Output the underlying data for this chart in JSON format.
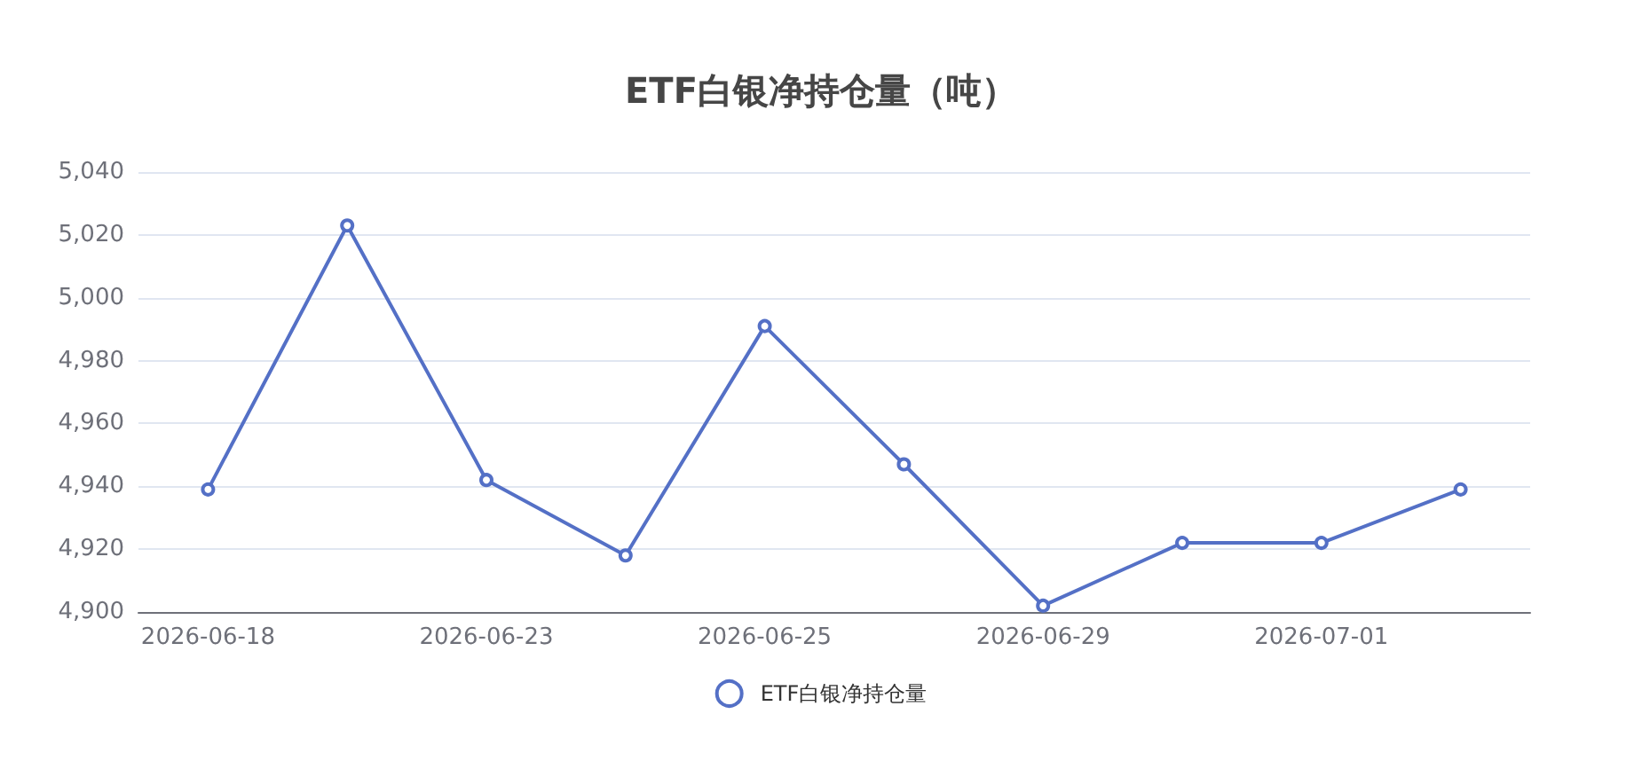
{
  "chart_data": {
    "type": "line",
    "title": "ETF白银净持仓量（吨）",
    "categories": [
      "2026-06-18",
      null,
      "2026-06-23",
      null,
      "2026-06-25",
      null,
      "2026-06-29",
      null,
      "2026-07-01",
      null
    ],
    "series": [
      {
        "name": "ETF白银净持仓量",
        "color": "#5470c6",
        "values": [
          4939,
          5023,
          4942,
          4918,
          4991,
          4947,
          4902,
          4922,
          4922,
          4939
        ]
      }
    ],
    "ylim": [
      4900,
      5040
    ],
    "yticks": [
      {
        "value": 4900,
        "label": "4,900"
      },
      {
        "value": 4920,
        "label": "4,920"
      },
      {
        "value": 4940,
        "label": "4,940"
      },
      {
        "value": 4960,
        "label": "4,960"
      },
      {
        "value": 4980,
        "label": "4,980"
      },
      {
        "value": 5000,
        "label": "5,000"
      },
      {
        "value": 5020,
        "label": "5,020"
      },
      {
        "value": 5040,
        "label": "5,040"
      }
    ],
    "grid": "y",
    "legend": "bottom",
    "marker": "circle",
    "line_style": "solid"
  }
}
